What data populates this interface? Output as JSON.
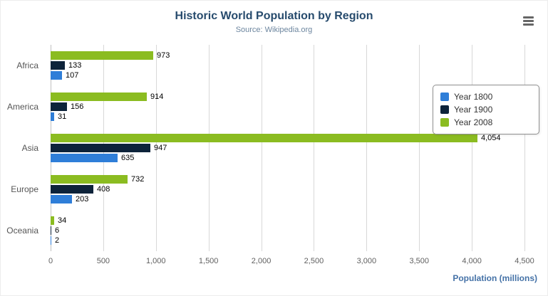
{
  "chart_data": {
    "type": "bar",
    "title": "Historic World Population by Region",
    "subtitle": "Source: Wikipedia.org",
    "categories": [
      "Africa",
      "America",
      "Asia",
      "Europe",
      "Oceania"
    ],
    "series": [
      {
        "name": "Year 1800",
        "color": "#2f7ed8",
        "values": [
          107,
          31,
          635,
          203,
          2
        ]
      },
      {
        "name": "Year 1900",
        "color": "#0d233a",
        "values": [
          133,
          156,
          947,
          408,
          6
        ]
      },
      {
        "name": "Year 2008",
        "color": "#8bbc21",
        "values": [
          973,
          914,
          4054,
          732,
          34
        ]
      }
    ],
    "bar_display_order_top_to_bottom": [
      "Year 2008",
      "Year 1900",
      "Year 1800"
    ],
    "xlabel": "Population (millions)",
    "xlim": [
      0,
      4500
    ],
    "xticks": [
      0,
      500,
      1000,
      1500,
      2000,
      2500,
      3000,
      3500,
      4000,
      4500
    ],
    "grid": true,
    "legend_position": "right"
  },
  "icons": {
    "context_menu": "hamburger-menu-icon"
  }
}
